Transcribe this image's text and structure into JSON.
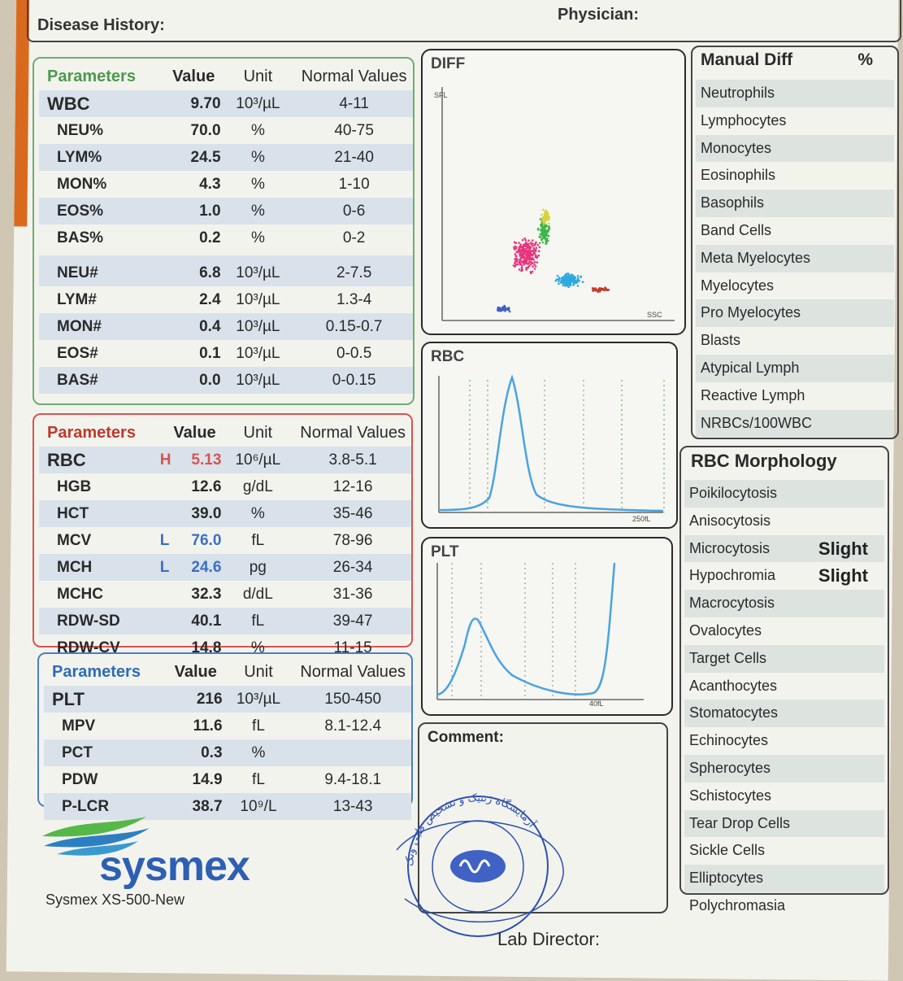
{
  "header": {
    "disease_history_label": "Disease History:",
    "physician_label": "Physician:"
  },
  "wbc_panel": {
    "headers": [
      "Parameters",
      "Value",
      "Unit",
      "Normal Values"
    ],
    "rows": [
      {
        "name": "WBC",
        "flag": "",
        "value": "9.70",
        "unit": "10³/µL",
        "normal": "4-11"
      },
      {
        "name": "NEU%",
        "flag": "",
        "value": "70.0",
        "unit": "%",
        "normal": "40-75"
      },
      {
        "name": "LYM%",
        "flag": "",
        "value": "24.5",
        "unit": "%",
        "normal": "21-40"
      },
      {
        "name": "MON%",
        "flag": "",
        "value": "4.3",
        "unit": "%",
        "normal": "1-10"
      },
      {
        "name": "EOS%",
        "flag": "",
        "value": "1.0",
        "unit": "%",
        "normal": "0-6"
      },
      {
        "name": "BAS%",
        "flag": "",
        "value": "0.2",
        "unit": "%",
        "normal": "0-2"
      },
      {
        "name": "NEU#",
        "flag": "",
        "value": "6.8",
        "unit": "10³/µL",
        "normal": "2-7.5"
      },
      {
        "name": "LYM#",
        "flag": "",
        "value": "2.4",
        "unit": "10³/µL",
        "normal": "1.3-4"
      },
      {
        "name": "MON#",
        "flag": "",
        "value": "0.4",
        "unit": "10³/µL",
        "normal": "0.15-0.7"
      },
      {
        "name": "EOS#",
        "flag": "",
        "value": "0.1",
        "unit": "10³/µL",
        "normal": "0-0.5"
      },
      {
        "name": "BAS#",
        "flag": "",
        "value": "0.0",
        "unit": "10³/µL",
        "normal": "0-0.15"
      }
    ]
  },
  "rbc_panel": {
    "headers": [
      "Parameters",
      "Value",
      "Unit",
      "Normal Values"
    ],
    "rows": [
      {
        "name": "RBC",
        "flag": "H",
        "value": "5.13",
        "unit": "10⁶/µL",
        "normal": "3.8-5.1"
      },
      {
        "name": "HGB",
        "flag": "",
        "value": "12.6",
        "unit": "g/dL",
        "normal": "12-16"
      },
      {
        "name": "HCT",
        "flag": "",
        "value": "39.0",
        "unit": "%",
        "normal": "35-46"
      },
      {
        "name": "MCV",
        "flag": "L",
        "value": "76.0",
        "unit": "fL",
        "normal": "78-96"
      },
      {
        "name": "MCH",
        "flag": "L",
        "value": "24.6",
        "unit": "pg",
        "normal": "26-34"
      },
      {
        "name": "MCHC",
        "flag": "",
        "value": "32.3",
        "unit": "d/dL",
        "normal": "31-36"
      },
      {
        "name": "RDW-SD",
        "flag": "",
        "value": "40.1",
        "unit": "fL",
        "normal": "39-47"
      },
      {
        "name": "RDW-CV",
        "flag": "",
        "value": "14.8",
        "unit": "%",
        "normal": "11-15"
      }
    ]
  },
  "plt_panel": {
    "headers": [
      "Parameters",
      "Value",
      "Unit",
      "Normal Values"
    ],
    "rows": [
      {
        "name": "PLT",
        "flag": "",
        "value": "216",
        "unit": "10³/µL",
        "normal": "150-450"
      },
      {
        "name": "MPV",
        "flag": "",
        "value": "11.6",
        "unit": "fL",
        "normal": "8.1-12.4"
      },
      {
        "name": "PCT",
        "flag": "",
        "value": "0.3",
        "unit": "%",
        "normal": ""
      },
      {
        "name": "PDW",
        "flag": "",
        "value": "14.9",
        "unit": "fL",
        "normal": "9.4-18.1"
      },
      {
        "name": "P-LCR",
        "flag": "",
        "value": "38.7",
        "unit": "10⁹/L",
        "normal": "13-43"
      }
    ]
  },
  "charts": {
    "diff_title": "DIFF",
    "diff_axis_y": "SFL",
    "diff_axis_x": "SSC",
    "rbc_title": "RBC",
    "rbc_axis": "250fL",
    "plt_title": "PLT",
    "plt_axis": "40fL"
  },
  "comment_label": "Comment:",
  "manual_diff": {
    "title": "Manual Diff",
    "pct": "%",
    "items": [
      "Neutrophils",
      "Lymphocytes",
      "Monocytes",
      "Eosinophils",
      "Basophils",
      "Band Cells",
      "Meta Myelocytes",
      "Myelocytes",
      "Pro  Myelocytes",
      "Blasts",
      "Atypical Lymph",
      "Reactive Lymph",
      "NRBCs/100WBC"
    ]
  },
  "rbc_morphology": {
    "title": "RBC Morphology",
    "items": [
      {
        "label": "Poikilocytosis",
        "grade": ""
      },
      {
        "label": "Anisocytosis",
        "grade": ""
      },
      {
        "label": "Microcytosis",
        "grade": "Slight"
      },
      {
        "label": "Hypochromia",
        "grade": "Slight"
      },
      {
        "label": "Macrocytosis",
        "grade": ""
      },
      {
        "label": "Ovalocytes",
        "grade": ""
      },
      {
        "label": "Target Cells",
        "grade": ""
      },
      {
        "label": "Acanthocytes",
        "grade": ""
      },
      {
        "label": "Stomatocytes",
        "grade": ""
      },
      {
        "label": "Echinocytes",
        "grade": ""
      },
      {
        "label": "Spherocytes",
        "grade": ""
      },
      {
        "label": "Schistocytes",
        "grade": ""
      },
      {
        "label": "Tear Drop Cells",
        "grade": ""
      },
      {
        "label": "Sickle Cells",
        "grade": ""
      },
      {
        "label": "Elliptocytes",
        "grade": ""
      },
      {
        "label": "Polychromasia",
        "grade": ""
      }
    ]
  },
  "brand": {
    "logo_text": "sysmex",
    "model": "Sysmex XS-500-New"
  },
  "stamp_text": "آزمایشگاه ژنتیک و تشخیص طبی ونک",
  "lab_director_label": "Lab Director:",
  "colors": {
    "green": "#6fae6f",
    "red": "#d9534f",
    "blue": "#4a7fc1",
    "flag_high": "#d9534f",
    "flag_low": "#3a6fc4",
    "curve": "#4aa3e0"
  }
}
